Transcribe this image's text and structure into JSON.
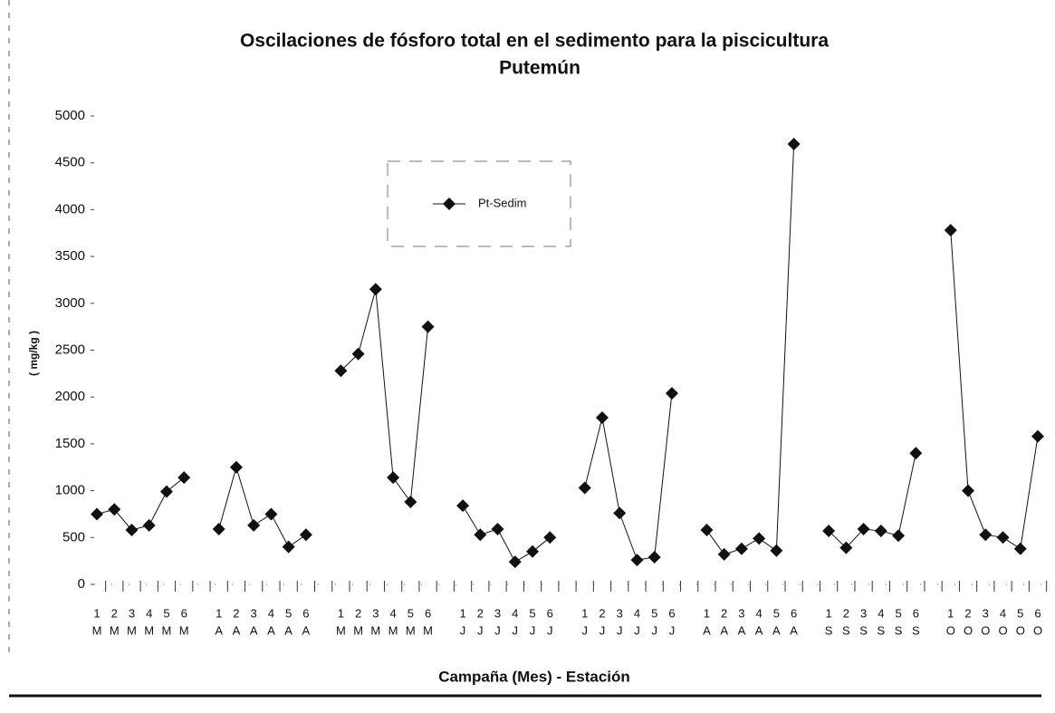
{
  "chart_data": {
    "type": "line",
    "title": [
      "Oscilaciones de fósforo total en el sedimento para la piscicultura",
      "Putemún"
    ],
    "xlabel": "Campaña (Mes) - Estación",
    "ylabel": "( mg/kg )",
    "categories": [
      [
        "1",
        "M"
      ],
      [
        "2",
        "M"
      ],
      [
        "3",
        "M"
      ],
      [
        "4",
        "M"
      ],
      [
        "5",
        "M"
      ],
      [
        "6",
        "M"
      ],
      null,
      [
        "1",
        "A"
      ],
      [
        "2",
        "A"
      ],
      [
        "3",
        "A"
      ],
      [
        "4",
        "A"
      ],
      [
        "5",
        "A"
      ],
      [
        "6",
        "A"
      ],
      null,
      [
        "1",
        "M"
      ],
      [
        "2",
        "M"
      ],
      [
        "3",
        "M"
      ],
      [
        "4",
        "M"
      ],
      [
        "5",
        "M"
      ],
      [
        "6",
        "M"
      ],
      null,
      [
        "1",
        "J"
      ],
      [
        "2",
        "J"
      ],
      [
        "3",
        "J"
      ],
      [
        "4",
        "J"
      ],
      [
        "5",
        "J"
      ],
      [
        "6",
        "J"
      ],
      null,
      [
        "1",
        "J"
      ],
      [
        "2",
        "J"
      ],
      [
        "3",
        "J"
      ],
      [
        "4",
        "J"
      ],
      [
        "5",
        "J"
      ],
      [
        "6",
        "J"
      ],
      null,
      [
        "1",
        "A"
      ],
      [
        "2",
        "A"
      ],
      [
        "3",
        "A"
      ],
      [
        "4",
        "A"
      ],
      [
        "5",
        "A"
      ],
      [
        "6",
        "A"
      ],
      null,
      [
        "1",
        "S"
      ],
      [
        "2",
        "S"
      ],
      [
        "3",
        "S"
      ],
      [
        "4",
        "S"
      ],
      [
        "5",
        "S"
      ],
      [
        "6",
        "S"
      ],
      null,
      [
        "1",
        "O"
      ],
      [
        "2",
        "O"
      ],
      [
        "3",
        "O"
      ],
      [
        "4",
        "O"
      ],
      [
        "5",
        "O"
      ],
      [
        "6",
        "O"
      ]
    ],
    "series": [
      {
        "name": "Pt-Sedim",
        "color": "#111111",
        "values": [
          750,
          800,
          580,
          630,
          990,
          1140,
          null,
          590,
          1250,
          630,
          750,
          400,
          530,
          null,
          2280,
          2460,
          3150,
          1140,
          880,
          2750,
          null,
          840,
          530,
          590,
          240,
          350,
          500,
          null,
          1030,
          1780,
          760,
          260,
          290,
          2040,
          null,
          580,
          320,
          380,
          490,
          360,
          4700,
          null,
          570,
          390,
          590,
          570,
          520,
          1400,
          null,
          3780,
          1000,
          530,
          500,
          380,
          1580
        ]
      }
    ],
    "ylim": [
      0,
      5000
    ],
    "yticks": [
      0,
      500,
      1000,
      1500,
      2000,
      2500,
      3000,
      3500,
      4000,
      4500,
      5000
    ],
    "grid": false,
    "legend": "top-center"
  }
}
